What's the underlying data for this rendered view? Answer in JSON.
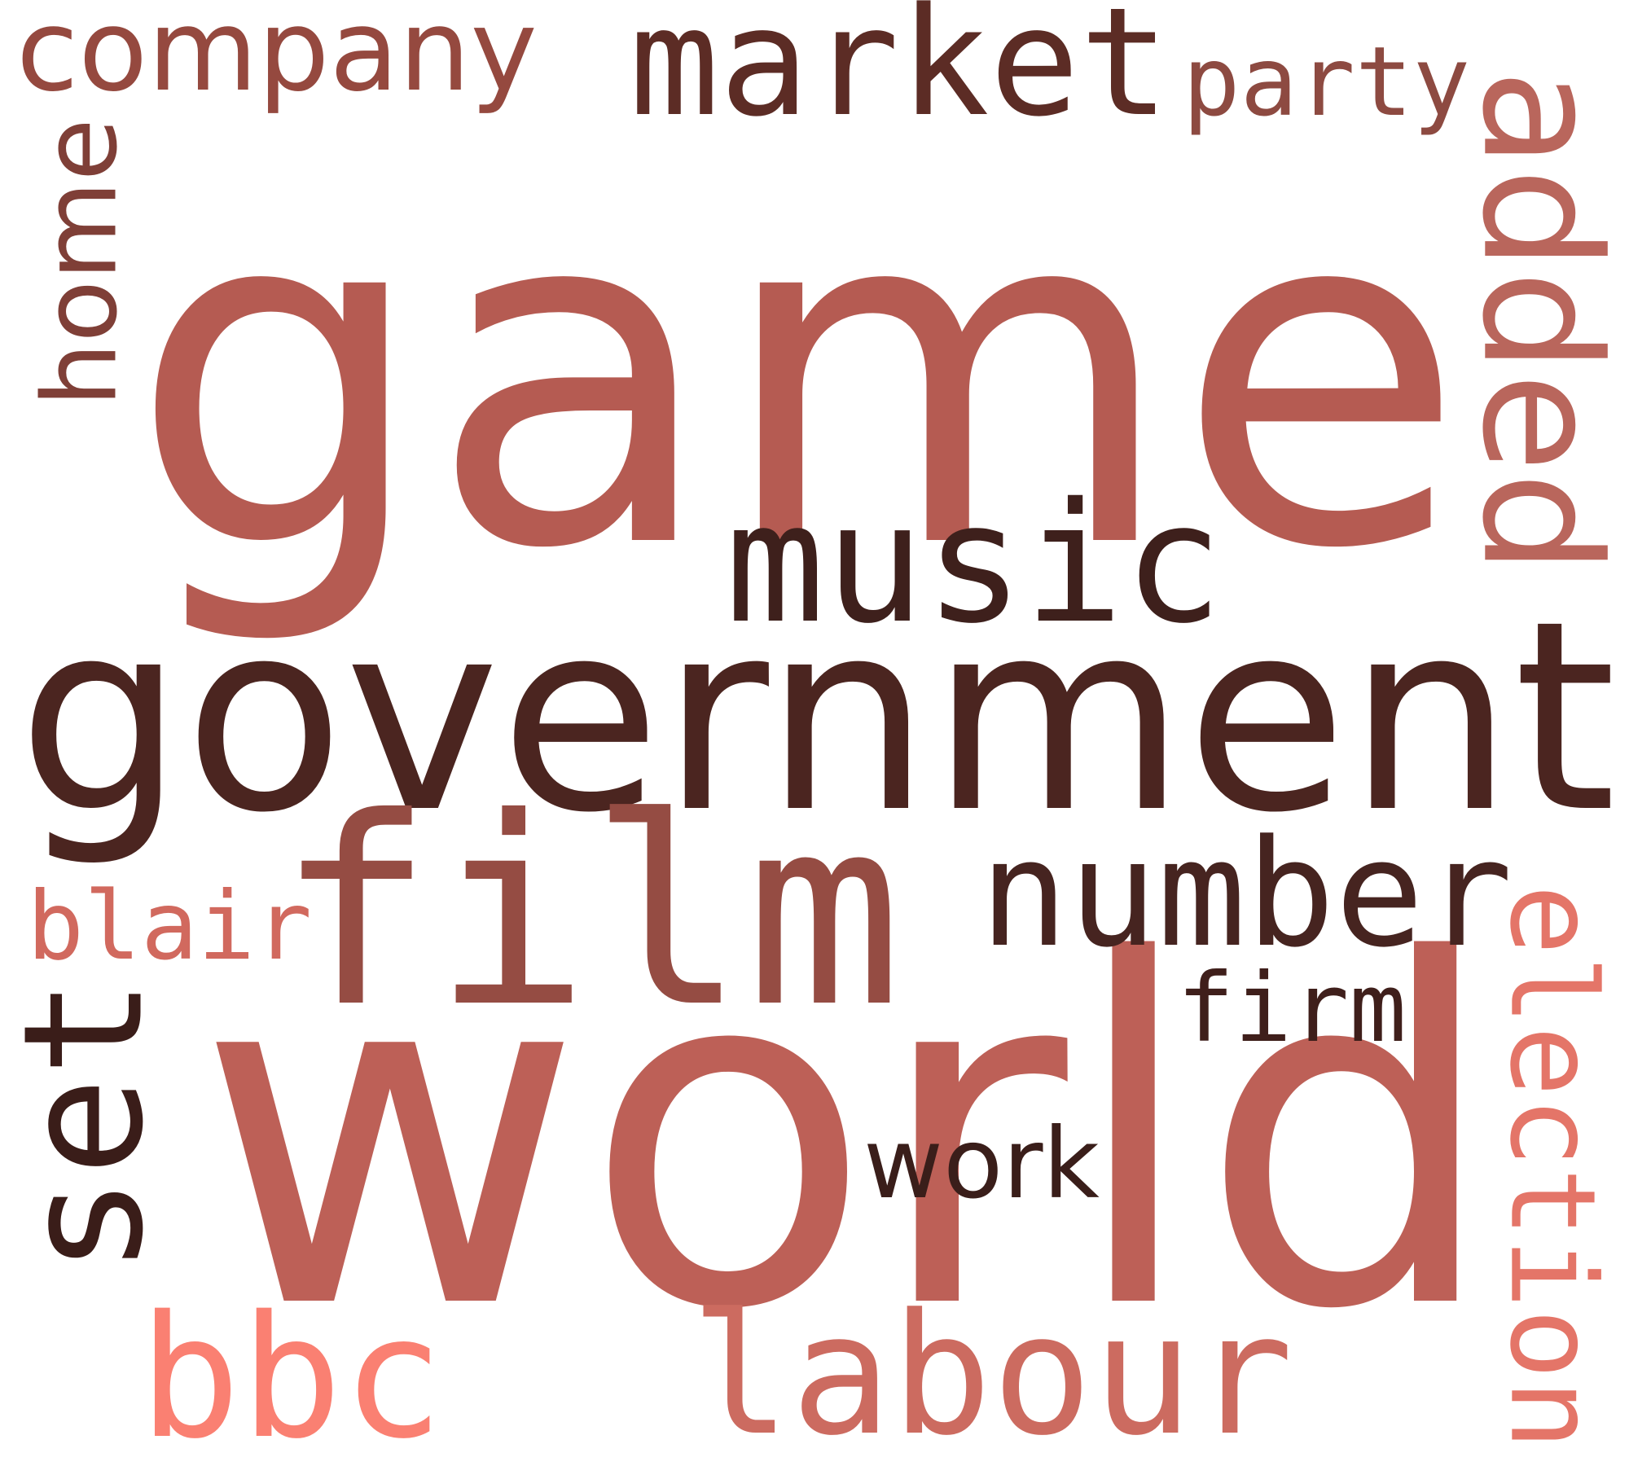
{
  "cloud": {
    "words": [
      {
        "key": "game",
        "text": "game",
        "color": "#b55b52",
        "rotation": 0
      },
      {
        "key": "world",
        "text": "world",
        "color": "#bd6057",
        "rotation": 0
      },
      {
        "key": "government",
        "text": "government",
        "color": "#4b2520",
        "rotation": 0
      },
      {
        "key": "film",
        "text": "film",
        "color": "#954c43",
        "rotation": 0
      },
      {
        "key": "music",
        "text": "music",
        "color": "#3e201c",
        "rotation": 0
      },
      {
        "key": "number",
        "text": "number",
        "color": "#462420",
        "rotation": 0
      },
      {
        "key": "market",
        "text": "market",
        "color": "#5c2c25",
        "rotation": 0
      },
      {
        "key": "labour",
        "text": "labour",
        "color": "#cc6b60",
        "rotation": 0
      },
      {
        "key": "bbc",
        "text": "bbc",
        "color": "#fa8072",
        "rotation": 0
      },
      {
        "key": "company",
        "text": "company",
        "color": "#95493f",
        "rotation": 0
      },
      {
        "key": "set",
        "text": "set",
        "color": "#3a1d19",
        "rotation": 270
      },
      {
        "key": "home",
        "text": "home",
        "color": "#7f3f37",
        "rotation": 270
      },
      {
        "key": "added",
        "text": "added",
        "color": "#b9665c",
        "rotation": 90
      },
      {
        "key": "election",
        "text": "election",
        "color": "#e47568",
        "rotation": 90
      },
      {
        "key": "party",
        "text": "party",
        "color": "#8d4a41",
        "rotation": 0
      },
      {
        "key": "firm",
        "text": "firm",
        "color": "#3f1f1b",
        "rotation": 0
      },
      {
        "key": "work",
        "text": "work",
        "color": "#3a1e1a",
        "rotation": 0
      },
      {
        "key": "blair",
        "text": "blair",
        "color": "#d1695e",
        "rotation": 0
      }
    ]
  }
}
